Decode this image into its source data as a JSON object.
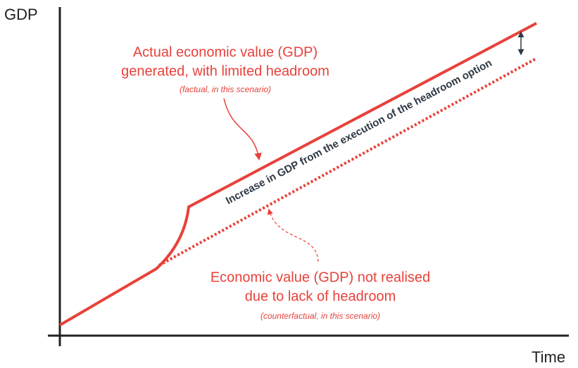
{
  "axes": {
    "y_label": "GDP",
    "x_label": "Time"
  },
  "annotations": {
    "factual": {
      "lines": [
        "Actual economic value (GDP)",
        "generated, with limited headroom"
      ],
      "note": "(factual, in this scenario)"
    },
    "gap": "Increase in GDP from the execution of the headroom option",
    "counterfactual": {
      "lines": [
        "Economic value (GDP) not realised",
        "due to lack of headroom"
      ],
      "note": "(counterfactual, in this scenario)"
    }
  }
}
